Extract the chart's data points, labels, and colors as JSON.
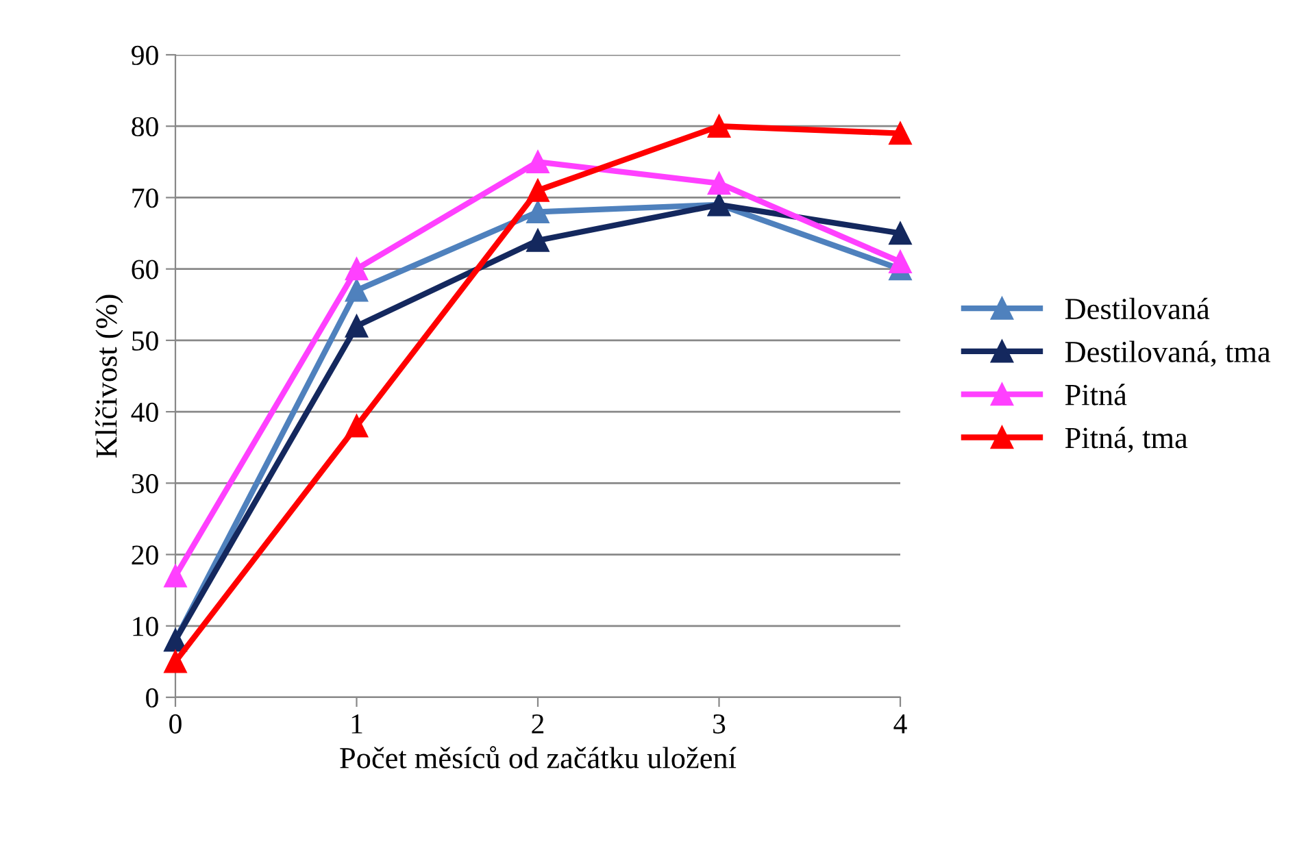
{
  "chart_data": {
    "type": "line",
    "xlabel": "Počet měsíců od začátku uložení",
    "ylabel": "Klíčivost (%)",
    "x": [
      0,
      1,
      2,
      3,
      4
    ],
    "xlim": [
      0,
      4
    ],
    "xticks": [
      0,
      1,
      2,
      3,
      4
    ],
    "ylim": [
      0,
      90
    ],
    "yticks": [
      0,
      10,
      20,
      30,
      40,
      50,
      60,
      70,
      80,
      90
    ],
    "grid": "y",
    "legend": "right",
    "marker": "triangle",
    "line_style": "solid",
    "series": [
      {
        "name": "Destilovaná",
        "color": "#4f81bd",
        "values": [
          8,
          57,
          68,
          69,
          60
        ]
      },
      {
        "name": "Destilovaná, tma",
        "color": "#14285e",
        "values": [
          8,
          52,
          64,
          69,
          65
        ]
      },
      {
        "name": "Pitná",
        "color": "#ff40ff",
        "values": [
          17,
          60,
          75,
          72,
          61
        ]
      },
      {
        "name": "Pitná, tma",
        "color": "#ff0000",
        "values": [
          5,
          38,
          71,
          80,
          79
        ]
      }
    ]
  }
}
